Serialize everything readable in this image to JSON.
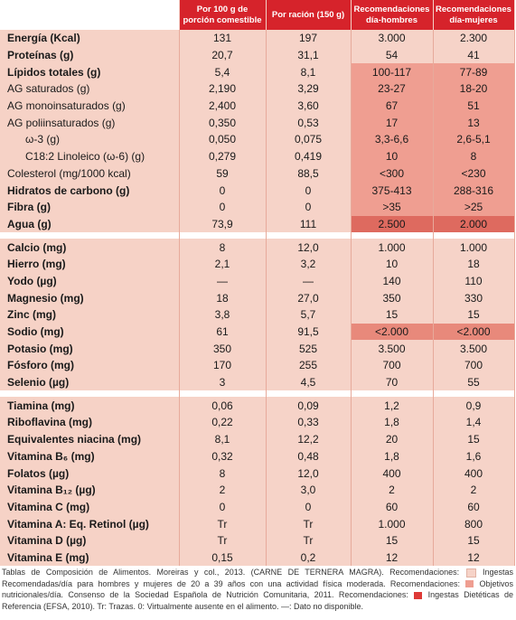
{
  "headers": [
    "Por 100 g de porción comestible",
    "Por ración (150 g)",
    "Recomendaciones día-hombres",
    "Recomendaciones día-mujeres"
  ],
  "sections": [
    {
      "rows": [
        {
          "label": "Energía (Kcal)",
          "bold": true,
          "values": [
            "131",
            "197",
            "3.000",
            "2.300"
          ]
        },
        {
          "label": "Proteínas (g)",
          "bold": true,
          "values": [
            "20,7",
            "31,1",
            "54",
            "41"
          ]
        },
        {
          "label": "Lípidos totales (g)",
          "bold": true,
          "values": [
            "5,4",
            "8,1",
            "100-117",
            "77-89"
          ]
        },
        {
          "label": "AG saturados (g)",
          "values": [
            "2,190",
            "3,29",
            "23-27",
            "18-20"
          ]
        },
        {
          "label": "AG monoinsaturados (g)",
          "values": [
            "2,400",
            "3,60",
            "67",
            "51"
          ]
        },
        {
          "label": "AG poliinsaturados (g)",
          "values": [
            "0,350",
            "0,53",
            "17",
            "13"
          ]
        },
        {
          "label": "ω-3 (g)",
          "indent": true,
          "values": [
            "0,050",
            "0,075",
            "3,3-6,6",
            "2,6-5,1"
          ]
        },
        {
          "label": "C18:2 Linoleico (ω-6) (g)",
          "indent": true,
          "values": [
            "0,279",
            "0,419",
            "10",
            "8"
          ]
        },
        {
          "label": "Colesterol (mg/1000 kcal)",
          "values": [
            "59",
            "88,5",
            "<300",
            "<230"
          ]
        },
        {
          "label": "Hidratos de carbono (g)",
          "bold": true,
          "values": [
            "0",
            "0",
            "375-413",
            "288-316"
          ]
        },
        {
          "label": "Fibra (g)",
          "bold": true,
          "values": [
            "0",
            "0",
            ">35",
            ">25"
          ]
        },
        {
          "label": "Agua (g)",
          "bold": true,
          "values": [
            "73,9",
            "111",
            "2.500",
            "2.000"
          ]
        }
      ]
    },
    {
      "rows": [
        {
          "label": "Calcio (mg)",
          "bold": true,
          "values": [
            "8",
            "12,0",
            "1.000",
            "1.000"
          ]
        },
        {
          "label": "Hierro (mg)",
          "bold": true,
          "values": [
            "2,1",
            "3,2",
            "10",
            "18"
          ]
        },
        {
          "label": "Yodo (µg)",
          "bold": true,
          "values": [
            "—",
            "—",
            "140",
            "110"
          ]
        },
        {
          "label": "Magnesio (mg)",
          "bold": true,
          "values": [
            "18",
            "27,0",
            "350",
            "330"
          ]
        },
        {
          "label": "Zinc (mg)",
          "bold": true,
          "values": [
            "3,8",
            "5,7",
            "15",
            "15"
          ]
        },
        {
          "label": "Sodio (mg)",
          "bold": true,
          "values": [
            "61",
            "91,5",
            "<2.000",
            "<2.000"
          ]
        },
        {
          "label": "Potasio (mg)",
          "bold": true,
          "values": [
            "350",
            "525",
            "3.500",
            "3.500"
          ]
        },
        {
          "label": "Fósforo (mg)",
          "bold": true,
          "values": [
            "170",
            "255",
            "700",
            "700"
          ]
        },
        {
          "label": "Selenio (µg)",
          "bold": true,
          "values": [
            "3",
            "4,5",
            "70",
            "55"
          ]
        }
      ]
    },
    {
      "rows": [
        {
          "label": "Tiamina (mg)",
          "bold": true,
          "values": [
            "0,06",
            "0,09",
            "1,2",
            "0,9"
          ]
        },
        {
          "label": "Riboflavina (mg)",
          "bold": true,
          "values": [
            "0,22",
            "0,33",
            "1,8",
            "1,4"
          ]
        },
        {
          "label": "Equivalentes niacina (mg)",
          "bold": true,
          "values": [
            "8,1",
            "12,2",
            "20",
            "15"
          ]
        },
        {
          "label": "Vitamina B₆ (mg)",
          "bold": true,
          "values": [
            "0,32",
            "0,48",
            "1,8",
            "1,6"
          ]
        },
        {
          "label": "Folatos (µg)",
          "bold": true,
          "values": [
            "8",
            "12,0",
            "400",
            "400"
          ]
        },
        {
          "label": "Vitamina B₁₂ (µg)",
          "bold": true,
          "values": [
            "2",
            "3,0",
            "2",
            "2"
          ]
        },
        {
          "label": "Vitamina C (mg)",
          "bold": true,
          "values": [
            "0",
            "0",
            "60",
            "60"
          ]
        },
        {
          "label": "Vitamina A: Eq. Retinol (µg)",
          "bold": true,
          "values": [
            "Tr",
            "Tr",
            "1.000",
            "800"
          ]
        },
        {
          "label": "Vitamina D (µg)",
          "bold": true,
          "values": [
            "Tr",
            "Tr",
            "15",
            "15"
          ]
        },
        {
          "label": "Vitamina E (mg)",
          "bold": true,
          "values": [
            "0,15",
            "0,2",
            "12",
            "12"
          ]
        }
      ]
    }
  ],
  "shading": {
    "ingestas_rows": [
      "Lípidos totales (g)",
      "AG saturados (g)",
      "AG monoinsaturados (g)",
      "AG poliinsaturados (g)",
      "ω-3 (g)",
      "C18:2 Linoleico (ω-6) (g)",
      "Colesterol (mg/1000 kcal)",
      "Hidratos de carbono (g)",
      "Fibra (g)",
      "Sodio (mg)"
    ],
    "objetivos_rows": [
      "Sodio (mg)"
    ],
    "efsa_rows": [
      "Agua (g)"
    ]
  },
  "colors": {
    "header_bg": "#d6232b",
    "row_bg": "#f6d3c8",
    "ingestas": "#ef9e91",
    "objetivos": "#e8897b",
    "efsa": "#de6a5f"
  },
  "footnote": {
    "p1": "Tablas de Composición de Alimentos. Moreiras y col., 2013. (CARNE DE TERNERA MAGRA). Recomendaciones:",
    "p2": "Ingestas Recomendadas/día para hombres y mujeres de 20 a 39 años con una actividad física moderada. Recomendaciones:",
    "p3": "Objetivos nutricionales/día. Consenso de la Sociedad Española de Nutrición Comunitaria, 2011. Recomendaciones:",
    "p4": "Ingestas Dietéticas de Referencia (EFSA, 2010). Tr: Trazas. 0: Virtualmente ausente en el alimento. —: Dato no disponible."
  }
}
